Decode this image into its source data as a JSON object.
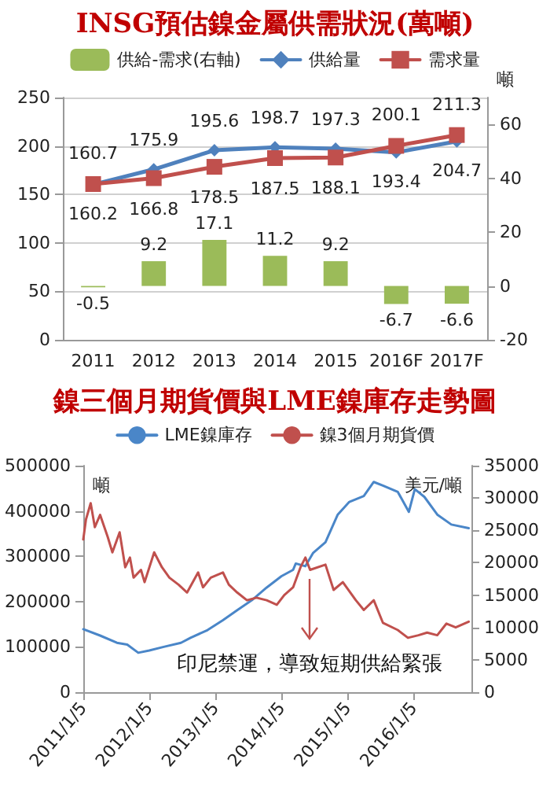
{
  "chart_data": [
    {
      "type": "line",
      "title": "INSG預估鎳金屬供需狀況(萬噸)",
      "y2label": "噸",
      "categories": [
        "2011",
        "2012",
        "2013",
        "2014",
        "2015",
        "2016F",
        "2017F"
      ],
      "series": [
        {
          "name": "供給-需求(右軸)",
          "type": "bar",
          "axis": "y2",
          "color": "#9bbb59",
          "values": [
            -0.5,
            9.2,
            17.1,
            11.2,
            9.2,
            -6.7,
            -6.6
          ]
        },
        {
          "name": "供給量",
          "marker": "diamond",
          "color": "#4f81bd",
          "values": [
            160.2,
            175.9,
            195.6,
            198.7,
            197.3,
            193.4,
            204.7
          ]
        },
        {
          "name": "需求量",
          "marker": "square",
          "color": "#c0504d",
          "values": [
            160.7,
            166.8,
            178.5,
            187.5,
            188.1,
            200.1,
            211.3
          ]
        }
      ],
      "ylim": [
        0,
        250
      ],
      "yticks": [
        0,
        50,
        100,
        150,
        200,
        250
      ],
      "y2lim": [
        -20,
        70
      ],
      "y2ticks": [
        -20,
        0,
        20,
        40,
        60
      ],
      "grid": "y",
      "legend": "top",
      "data_labels": true,
      "line_style": "solid"
    },
    {
      "type": "line",
      "title": "鎳三個月期貨價與LME鎳庫存走勢圖",
      "ylabel": "噸",
      "y2label": "美元/噸",
      "annotations": [
        "印尼禁運，導致短期供給緊張"
      ],
      "series": [
        {
          "name": "LME鎳庫存",
          "color": "#4a86c8",
          "x": [
            "2011-01-05",
            "2011-04-08",
            "2011-07-10",
            "2011-09-05",
            "2011-11-05",
            "2012-01-05",
            "2012-03-25",
            "2012-06-28",
            "2012-08-20",
            "2012-11-22",
            "2013-02-15",
            "2013-05-05",
            "2013-07-25",
            "2013-10-15",
            "2014-01-05",
            "2014-03-10",
            "2014-03-25",
            "2014-05-17",
            "2014-06-28",
            "2014-09-05",
            "2014-11-12",
            "2015-01-15",
            "2015-04-05",
            "2015-05-30",
            "2015-07-20",
            "2015-10-10",
            "2015-12-10",
            "2016-01-12",
            "2016-03-05",
            "2016-05-15",
            "2016-08-01",
            "2016-11-05"
          ],
          "values": [
            139000,
            125000,
            109000,
            105000,
            87000,
            92000,
            100000,
            109000,
            120000,
            137000,
            159000,
            181000,
            203000,
            231000,
            256000,
            270000,
            284000,
            278000,
            307000,
            331000,
            392000,
            420000,
            433000,
            464000,
            456000,
            442000,
            398000,
            448000,
            431000,
            392000,
            370000,
            362000
          ]
        },
        {
          "name": "鎳3個月期貨價",
          "axis": "y2",
          "color": "#c0504d",
          "x": [
            "2011-01-05",
            "2011-01-20",
            "2011-02-15",
            "2011-03-10",
            "2011-04-08",
            "2011-05-20",
            "2011-06-15",
            "2011-07-25",
            "2011-08-25",
            "2011-09-20",
            "2011-10-10",
            "2011-11-20",
            "2011-12-10",
            "2012-02-01",
            "2012-03-15",
            "2012-04-25",
            "2012-06-15",
            "2012-08-01",
            "2012-10-01",
            "2012-10-28",
            "2012-12-10",
            "2013-02-15",
            "2013-03-20",
            "2013-05-05",
            "2013-06-28",
            "2013-08-20",
            "2013-10-15",
            "2013-12-10",
            "2014-01-20",
            "2014-03-10",
            "2014-04-20",
            "2014-05-17",
            "2014-06-12",
            "2014-09-05",
            "2014-10-20",
            "2014-12-10",
            "2015-02-20",
            "2015-04-05",
            "2015-05-30",
            "2015-07-20",
            "2015-10-10",
            "2015-12-05",
            "2016-02-01",
            "2016-03-20",
            "2016-05-15",
            "2016-07-05",
            "2016-08-25",
            "2016-11-05"
          ],
          "values": [
            23600,
            26700,
            29200,
            25500,
            27400,
            24000,
            21600,
            24700,
            19300,
            20800,
            17700,
            18900,
            17000,
            21600,
            19300,
            17700,
            16600,
            15400,
            18500,
            16200,
            17700,
            18500,
            16600,
            15400,
            14200,
            14600,
            14200,
            13500,
            15000,
            16200,
            19300,
            20800,
            18900,
            19700,
            15800,
            17000,
            14200,
            12700,
            14200,
            10700,
            9600,
            8400,
            8800,
            9200,
            8800,
            10600,
            10000,
            10900
          ]
        }
      ],
      "xlim": [
        "2011-01-05",
        "2016-11-20"
      ],
      "xticks": [
        {
          "value": "2011-01-05",
          "label": "2011/1/5"
        },
        {
          "value": "2012-01-05",
          "label": "2012/1/5"
        },
        {
          "value": "2013-01-05",
          "label": "2013/1/5"
        },
        {
          "value": "2014-01-05",
          "label": "2014/1/5"
        },
        {
          "value": "2015-01-05",
          "label": "2015/1/5"
        },
        {
          "value": "2016-01-05",
          "label": "2016/1/5"
        }
      ],
      "ylim": [
        0,
        500000
      ],
      "yticks": [
        0,
        100000,
        200000,
        300000,
        400000,
        500000
      ],
      "y2lim": [
        0,
        35000
      ],
      "y2ticks": [
        0,
        5000,
        10000,
        15000,
        20000,
        25000,
        30000,
        35000
      ],
      "grid": false,
      "legend": "top",
      "marker": "none",
      "line_style": "solid"
    }
  ]
}
